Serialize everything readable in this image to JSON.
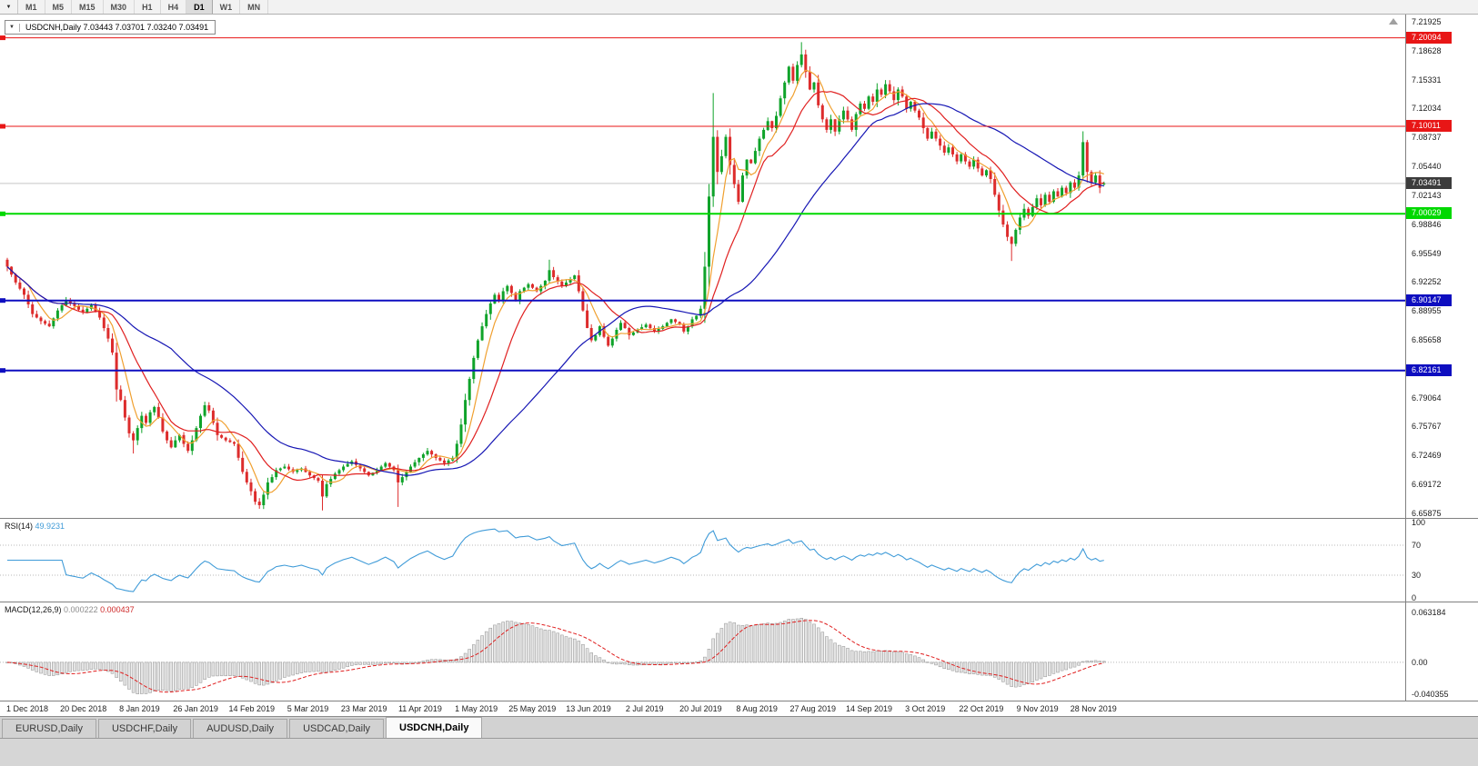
{
  "toolbar": {
    "dropdown_icon": "▼",
    "timeframes": [
      "M1",
      "M5",
      "M15",
      "M30",
      "H1",
      "H4",
      "D1",
      "W1",
      "MN"
    ],
    "active": "D1"
  },
  "chart": {
    "one_click_icon": "▼",
    "header_text": "USDCNH,Daily 7.03443 7.03701 7.03240 7.03491",
    "symbol": "USDCNH,Daily",
    "ohlc": {
      "open": "7.03443",
      "high": "7.03701",
      "low": "7.03240",
      "close": "7.03491"
    },
    "price_axis": {
      "labels": [
        "7.21925",
        "7.18628",
        "7.15331",
        "7.12034",
        "7.08737",
        "7.05440",
        "7.02143",
        "6.98846",
        "6.95549",
        "6.92252",
        "6.88955",
        "6.85658",
        "6.82361",
        "6.79064",
        "6.75767",
        "6.72469",
        "6.69172",
        "6.65875"
      ]
    },
    "hlines": [
      {
        "price": 7.20094,
        "label": "7.20094",
        "color": "#e81616",
        "width": 1
      },
      {
        "price": 7.10011,
        "label": "7.10011",
        "color": "#e81616",
        "width": 1
      },
      {
        "price": 7.00029,
        "label": "7.00029",
        "color": "#00d800",
        "width": 2
      },
      {
        "price": 6.90147,
        "label": "6.90147",
        "color": "#0e0ec0",
        "width": 2
      },
      {
        "price": 6.82161,
        "label": "6.82161",
        "color": "#0e0ec0",
        "width": 2
      }
    ],
    "bid": {
      "price": 7.03491,
      "label": "7.03491",
      "tag_bg": "#3c3c3c",
      "line_color": "#c8c8c8"
    },
    "date_labels": [
      "1 Dec 2018",
      "20 Dec 2018",
      "8 Jan 2019",
      "26 Jan 2019",
      "14 Feb 2019",
      "5 Mar 2019",
      "23 Mar 2019",
      "11 Apr 2019",
      "1 May 2019",
      "25 May 2019",
      "13 Jun 2019",
      "2 Jul 2019",
      "20 Jul 2019",
      "8 Aug 2019",
      "27 Aug 2019",
      "14 Sep 2019",
      "3 Oct 2019",
      "22 Oct 2019",
      "9 Nov 2019",
      "28 Nov 2019"
    ]
  },
  "rsi": {
    "title": "RSI(14)",
    "value": "49.9231",
    "line_color": "#3f9bd8",
    "axis_labels": [
      "100",
      "70",
      "30",
      "0"
    ],
    "level_lines": [
      70,
      30
    ]
  },
  "macd": {
    "title": "MACD(12,26,9)",
    "value_main": "0.000222",
    "value_signal": "0.000437",
    "axis_labels": [
      "0.063184",
      "0.00",
      "-0.040355"
    ],
    "histogram_color": "#e4e4e4",
    "histogram_border": "#909090",
    "signal_color": "#e02020"
  },
  "tabs": [
    {
      "label": "EURUSD,Daily",
      "active": false
    },
    {
      "label": "USDCHF,Daily",
      "active": false
    },
    {
      "label": "AUDUSD,Daily",
      "active": false
    },
    {
      "label": "USDCAD,Daily",
      "active": false
    },
    {
      "label": "USDCNH,Daily",
      "active": true
    }
  ],
  "chart_data": {
    "type": "candlestick",
    "symbol": "USDCNH",
    "timeframe": "Daily",
    "current_ohlc": {
      "open": 7.03443,
      "high": 7.03701,
      "low": 7.0324,
      "close": 7.03491
    },
    "y_range": [
      6.6535,
      7.2275
    ],
    "up_color": "#0fa32a",
    "down_color": "#dd2c2c",
    "x_labels": [
      "1 Dec 2018",
      "20 Dec 2018",
      "8 Jan 2019",
      "26 Jan 2019",
      "14 Feb 2019",
      "5 Mar 2019",
      "23 Mar 2019",
      "11 Apr 2019",
      "1 May 2019",
      "25 May 2019",
      "13 Jun 2019",
      "2 Jul 2019",
      "20 Jul 2019",
      "8 Aug 2019",
      "27 Aug 2019",
      "14 Sep 2019",
      "3 Oct 2019",
      "22 Oct 2019",
      "9 Nov 2019",
      "28 Nov 2019"
    ],
    "closes": [
      6.94,
      6.931,
      6.922,
      6.915,
      6.908,
      6.897,
      6.886,
      6.882,
      6.878,
      6.875,
      6.872,
      6.881,
      6.89,
      6.896,
      6.902,
      6.898,
      6.895,
      6.891,
      6.888,
      6.892,
      6.896,
      6.889,
      6.882,
      6.87,
      6.858,
      6.842,
      6.8,
      6.788,
      6.768,
      6.75,
      6.742,
      6.756,
      6.77,
      6.762,
      6.774,
      6.78,
      6.768,
      6.752,
      6.742,
      6.734,
      6.742,
      6.748,
      6.738,
      6.73,
      6.742,
      6.756,
      6.77,
      6.782,
      6.776,
      6.762,
      6.748,
      6.745,
      6.742,
      6.74,
      6.738,
      6.722,
      6.706,
      6.694,
      6.684,
      6.672,
      6.668,
      6.68,
      6.694,
      6.7,
      6.708,
      6.71,
      6.712,
      6.709,
      6.706,
      6.708,
      6.71,
      6.706,
      6.702,
      6.699,
      6.696,
      6.678,
      6.692,
      6.698,
      6.704,
      6.708,
      6.712,
      6.715,
      6.718,
      6.714,
      6.71,
      6.706,
      6.702,
      6.705,
      6.708,
      6.712,
      6.716,
      6.712,
      6.708,
      6.694,
      6.7,
      6.706,
      6.712,
      6.717,
      6.722,
      6.726,
      6.73,
      6.726,
      6.722,
      6.719,
      6.716,
      6.719,
      6.722,
      6.738,
      6.76,
      6.788,
      6.812,
      6.836,
      6.856,
      6.872,
      6.886,
      6.898,
      6.908,
      6.902,
      6.912,
      6.918,
      6.91,
      6.902,
      6.912,
      6.916,
      6.92,
      6.916,
      6.912,
      6.918,
      6.924,
      6.936,
      6.928,
      6.923,
      6.918,
      6.922,
      6.926,
      6.93,
      6.912,
      6.89,
      6.87,
      6.856,
      6.862,
      6.872,
      6.86,
      6.85,
      6.858,
      6.868,
      6.876,
      6.87,
      6.862,
      6.865,
      6.868,
      6.871,
      6.874,
      6.87,
      6.866,
      6.869,
      6.872,
      6.876,
      6.88,
      6.877,
      6.874,
      6.866,
      6.872,
      6.88,
      6.884,
      6.892,
      6.94,
      7.02,
      7.088,
      7.048,
      7.066,
      7.088,
      7.056,
      7.034,
      7.014,
      7.044,
      7.062,
      7.058,
      7.072,
      7.086,
      7.096,
      7.106,
      7.098,
      7.112,
      7.132,
      7.15,
      7.168,
      7.152,
      7.17,
      7.182,
      7.162,
      7.142,
      7.15,
      7.124,
      7.108,
      7.096,
      7.108,
      7.094,
      7.108,
      7.118,
      7.108,
      7.096,
      7.114,
      7.126,
      7.12,
      7.134,
      7.128,
      7.142,
      7.136,
      7.148,
      7.14,
      7.13,
      7.142,
      7.134,
      7.12,
      7.128,
      7.118,
      7.11,
      7.098,
      7.086,
      7.094,
      7.086,
      7.078,
      7.07,
      7.076,
      7.068,
      7.06,
      7.068,
      7.06,
      7.054,
      7.062,
      7.052,
      7.044,
      7.05,
      7.04,
      7.022,
      7.004,
      6.988,
      6.974,
      6.966,
      6.982,
      6.996,
      7.006,
      6.998,
      7.008,
      7.018,
      7.01,
      7.022,
      7.014,
      7.026,
      7.02,
      7.03,
      7.024,
      7.036,
      7.03,
      7.044,
      7.082,
      7.048,
      7.036,
      7.044,
      7.03,
      7.0349
    ],
    "spikes": [
      {
        "i": 30,
        "low": 6.727
      },
      {
        "i": 60,
        "low": 6.664
      },
      {
        "i": 75,
        "low": 6.662
      },
      {
        "i": 93,
        "low": 6.666
      },
      {
        "i": 129,
        "high": 6.948
      },
      {
        "i": 168,
        "high": 7.138
      },
      {
        "i": 189,
        "high": 7.196
      },
      {
        "i": 239,
        "low": 6.9465
      },
      {
        "i": 256,
        "high": 7.0885
      }
    ],
    "levels": [
      7.20094,
      7.10011,
      7.00029,
      6.90147,
      6.82161
    ],
    "moving_averages": [
      {
        "name": "fast",
        "period": 6,
        "color": "#f0a030"
      },
      {
        "name": "mid",
        "period": 14,
        "color": "#e02020"
      },
      {
        "name": "slow",
        "period": 40,
        "color": "#1616b4"
      }
    ],
    "rsi": {
      "period": 14,
      "current": 49.9231,
      "range": [
        0,
        100
      ],
      "levels": [
        70,
        30
      ]
    },
    "macd": {
      "fast": 12,
      "slow": 26,
      "signal": 9,
      "current_main": 0.000222,
      "current_signal": 0.000437,
      "axis_max": 0.063184,
      "axis_min": -0.040355
    }
  }
}
